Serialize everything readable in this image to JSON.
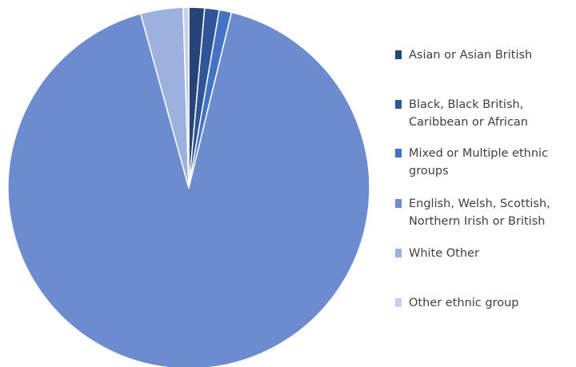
{
  "chart_data": {
    "type": "pie",
    "title": "",
    "legend_position": "right",
    "categories": [
      "Asian or Asian British",
      "Black, Black British,\nCaribbean or African",
      "Mixed or Multiple ethnic\ngroups",
      " English, Welsh, Scottish,\nNorthern Irish or British",
      "White Other",
      "Other ethnic group"
    ],
    "values": [
      1.4,
      1.3,
      1.1,
      91.9,
      3.8,
      0.5
    ],
    "colors": [
      "#264478",
      "#2F5597",
      "#4472C4",
      "#6D8BCF",
      "#9DB1DF",
      "#C5D1EC"
    ]
  }
}
